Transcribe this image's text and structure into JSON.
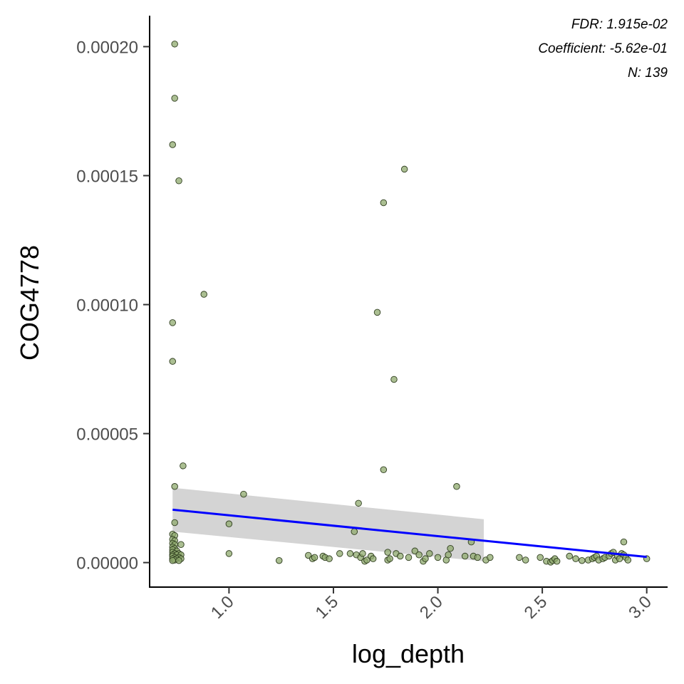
{
  "chart_data": {
    "type": "scatter",
    "xlabel": "log_depth",
    "ylabel": "COG4778",
    "xlim": [
      0.62,
      3.1
    ],
    "ylim": [
      -9.5e-06,
      0.000212
    ],
    "x_ticks": [
      1.0,
      1.5,
      2.0,
      2.5,
      3.0
    ],
    "x_tick_labels": [
      "1.0",
      "1.5",
      "2.0",
      "2.5",
      "3.0"
    ],
    "y_ticks": [
      0.0,
      5e-05,
      0.0001,
      0.00015,
      0.0002
    ],
    "y_tick_labels": [
      "0.00000",
      "0.00005",
      "0.00010",
      "0.00015",
      "0.00020"
    ],
    "annotations": [
      "FDR: 1.915e-02",
      "Coefficient: -5.62e-01",
      "N: 139"
    ],
    "grid": false,
    "point_color": "#8faa6e",
    "fit_color": "#0000ff",
    "ci_color": "#bdbdbd",
    "fit_line": {
      "x": [
        0.73,
        3.0
      ],
      "y": [
        2.05e-05,
        2.2e-06
      ]
    },
    "confidence_band": {
      "x": [
        0.73,
        2.22
      ],
      "upper": [
        2.9e-05,
        1.68e-05
      ],
      "lower": [
        1.2e-05,
        5e-07
      ]
    },
    "points": [
      {
        "x": 0.74,
        "y": 0.000201
      },
      {
        "x": 0.74,
        "y": 0.00018
      },
      {
        "x": 0.73,
        "y": 0.000162
      },
      {
        "x": 0.76,
        "y": 0.000148
      },
      {
        "x": 0.88,
        "y": 0.000104
      },
      {
        "x": 0.73,
        "y": 9.3e-05
      },
      {
        "x": 0.73,
        "y": 7.8e-05
      },
      {
        "x": 0.78,
        "y": 3.75e-05
      },
      {
        "x": 0.74,
        "y": 2.95e-05
      },
      {
        "x": 1.07,
        "y": 2.65e-05
      },
      {
        "x": 0.74,
        "y": 1.55e-05
      },
      {
        "x": 1.0,
        "y": 1.5e-05
      },
      {
        "x": 0.73,
        "y": 1.1e-05
      },
      {
        "x": 0.74,
        "y": 1.05e-05
      },
      {
        "x": 0.73,
        "y": 9e-06
      },
      {
        "x": 0.74,
        "y": 8.5e-06
      },
      {
        "x": 0.73,
        "y": 7.5e-06
      },
      {
        "x": 0.74,
        "y": 7e-06
      },
      {
        "x": 0.77,
        "y": 7e-06
      },
      {
        "x": 0.73,
        "y": 6e-06
      },
      {
        "x": 0.74,
        "y": 5.5e-06
      },
      {
        "x": 0.73,
        "y": 5e-06
      },
      {
        "x": 0.75,
        "y": 4.5e-06
      },
      {
        "x": 0.73,
        "y": 4e-06
      },
      {
        "x": 0.74,
        "y": 3.5e-06
      },
      {
        "x": 0.76,
        "y": 3.5e-06
      },
      {
        "x": 0.73,
        "y": 3e-06
      },
      {
        "x": 0.75,
        "y": 3e-06
      },
      {
        "x": 0.77,
        "y": 3e-06
      },
      {
        "x": 0.73,
        "y": 2.5e-06
      },
      {
        "x": 0.74,
        "y": 2e-06
      },
      {
        "x": 0.76,
        "y": 2e-06
      },
      {
        "x": 0.73,
        "y": 1.5e-06
      },
      {
        "x": 0.75,
        "y": 1.5e-06
      },
      {
        "x": 0.77,
        "y": 1.5e-06
      },
      {
        "x": 0.74,
        "y": 1e-06
      },
      {
        "x": 0.73,
        "y": 8e-07
      },
      {
        "x": 0.76,
        "y": 8e-07
      },
      {
        "x": 1.0,
        "y": 3.5e-06
      },
      {
        "x": 1.24,
        "y": 8e-07
      },
      {
        "x": 1.38,
        "y": 2.8e-06
      },
      {
        "x": 1.4,
        "y": 1.5e-06
      },
      {
        "x": 1.41,
        "y": 2e-06
      },
      {
        "x": 1.45,
        "y": 2.5e-06
      },
      {
        "x": 1.46,
        "y": 2e-06
      },
      {
        "x": 1.48,
        "y": 1.5e-06
      },
      {
        "x": 1.53,
        "y": 3.5e-06
      },
      {
        "x": 1.58,
        "y": 3.5e-06
      },
      {
        "x": 1.6,
        "y": 1.2e-05
      },
      {
        "x": 1.61,
        "y": 3e-06
      },
      {
        "x": 1.62,
        "y": 2.3e-05
      },
      {
        "x": 1.63,
        "y": 2e-06
      },
      {
        "x": 1.64,
        "y": 3.5e-06
      },
      {
        "x": 1.65,
        "y": 5e-07
      },
      {
        "x": 1.66,
        "y": 1e-06
      },
      {
        "x": 1.68,
        "y": 2.5e-06
      },
      {
        "x": 1.69,
        "y": 1.5e-06
      },
      {
        "x": 1.71,
        "y": 9.7e-05
      },
      {
        "x": 1.74,
        "y": 3.6e-05
      },
      {
        "x": 1.74,
        "y": 0.0001395
      },
      {
        "x": 1.76,
        "y": 4e-06
      },
      {
        "x": 1.76,
        "y": 1e-06
      },
      {
        "x": 1.77,
        "y": 1.5e-06
      },
      {
        "x": 1.79,
        "y": 7.1e-05
      },
      {
        "x": 1.8,
        "y": 3.5e-06
      },
      {
        "x": 1.82,
        "y": 2.5e-06
      },
      {
        "x": 1.84,
        "y": 0.0001525
      },
      {
        "x": 1.86,
        "y": 2e-06
      },
      {
        "x": 1.89,
        "y": 4.5e-06
      },
      {
        "x": 1.91,
        "y": 3e-06
      },
      {
        "x": 1.93,
        "y": 5e-07
      },
      {
        "x": 1.94,
        "y": 1.5e-06
      },
      {
        "x": 1.96,
        "y": 3.5e-06
      },
      {
        "x": 2.0,
        "y": 2e-06
      },
      {
        "x": 2.04,
        "y": 1e-06
      },
      {
        "x": 2.05,
        "y": 3e-06
      },
      {
        "x": 2.06,
        "y": 5.5e-06
      },
      {
        "x": 2.09,
        "y": 2.95e-05
      },
      {
        "x": 2.13,
        "y": 2.5e-06
      },
      {
        "x": 2.16,
        "y": 8e-06
      },
      {
        "x": 2.17,
        "y": 2.5e-06
      },
      {
        "x": 2.19,
        "y": 2e-06
      },
      {
        "x": 2.23,
        "y": 1e-06
      },
      {
        "x": 2.25,
        "y": 2e-06
      },
      {
        "x": 2.39,
        "y": 2e-06
      },
      {
        "x": 2.42,
        "y": 1e-06
      },
      {
        "x": 2.49,
        "y": 2e-06
      },
      {
        "x": 2.52,
        "y": 5e-07
      },
      {
        "x": 2.54,
        "y": 2e-07
      },
      {
        "x": 2.55,
        "y": 8e-07
      },
      {
        "x": 2.56,
        "y": 1.5e-06
      },
      {
        "x": 2.57,
        "y": 5e-07
      },
      {
        "x": 2.63,
        "y": 2.5e-06
      },
      {
        "x": 2.66,
        "y": 1.5e-06
      },
      {
        "x": 2.69,
        "y": 8e-07
      },
      {
        "x": 2.72,
        "y": 1e-06
      },
      {
        "x": 2.74,
        "y": 1.5e-06
      },
      {
        "x": 2.75,
        "y": 2e-06
      },
      {
        "x": 2.76,
        "y": 2.5e-06
      },
      {
        "x": 2.77,
        "y": 1e-06
      },
      {
        "x": 2.79,
        "y": 1.5e-06
      },
      {
        "x": 2.8,
        "y": 2e-06
      },
      {
        "x": 2.82,
        "y": 2.5e-06
      },
      {
        "x": 2.83,
        "y": 3.5e-06
      },
      {
        "x": 2.84,
        "y": 4e-06
      },
      {
        "x": 2.85,
        "y": 1e-06
      },
      {
        "x": 2.86,
        "y": 2.5e-06
      },
      {
        "x": 2.87,
        "y": 1.5e-06
      },
      {
        "x": 2.88,
        "y": 3.5e-06
      },
      {
        "x": 2.89,
        "y": 3e-06
      },
      {
        "x": 2.89,
        "y": 8e-06
      },
      {
        "x": 2.9,
        "y": 2e-06
      },
      {
        "x": 2.91,
        "y": 1e-06
      },
      {
        "x": 3.0,
        "y": 1.5e-06
      }
    ]
  }
}
